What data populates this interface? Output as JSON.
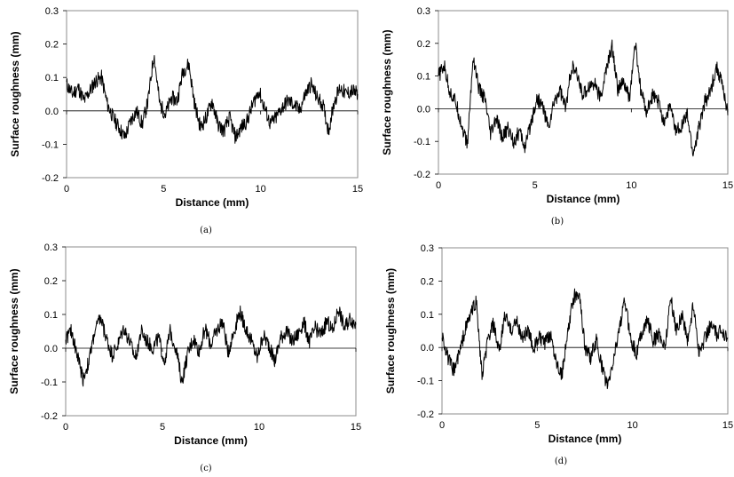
{
  "chart_data": [
    {
      "type": "line",
      "caption": "(a)",
      "xlabel": "Distance (mm)",
      "ylabel": "Surface roughness (mm)",
      "xlim": [
        0,
        15
      ],
      "ylim": [
        -0.2,
        0.3
      ],
      "xticks": [
        "0",
        "5",
        "10",
        "15"
      ],
      "yticks": [
        "0.3",
        "0.2",
        "0.1",
        "0.0",
        "-0.1",
        "-0.2"
      ],
      "series": [
        {
          "x": [
            0.0,
            0.3,
            0.6,
            0.9,
            1.2,
            1.5,
            1.8,
            2.1,
            2.4,
            2.7,
            3.0,
            3.3,
            3.6,
            3.9,
            4.2,
            4.5,
            4.8,
            5.1,
            5.4,
            5.7,
            6.0,
            6.3,
            6.6,
            6.9,
            7.2,
            7.5,
            7.8,
            8.1,
            8.4,
            8.7,
            9.0,
            9.3,
            9.6,
            9.9,
            10.2,
            10.5,
            10.8,
            11.1,
            11.4,
            11.7,
            12.0,
            12.3,
            12.6,
            12.9,
            13.2,
            13.5,
            13.8,
            14.1,
            14.4,
            14.7,
            15.0
          ],
          "y": [
            0.08,
            0.05,
            0.07,
            0.03,
            0.06,
            0.09,
            0.1,
            0.02,
            -0.02,
            -0.05,
            -0.08,
            -0.03,
            0.0,
            -0.04,
            0.03,
            0.17,
            0.02,
            -0.01,
            0.04,
            0.03,
            0.12,
            0.14,
            0.02,
            -0.05,
            -0.02,
            0.03,
            -0.04,
            -0.06,
            -0.02,
            -0.08,
            -0.05,
            -0.03,
            0.02,
            0.06,
            0.01,
            -0.04,
            -0.02,
            0.01,
            0.03,
            0.02,
            0.0,
            0.05,
            0.08,
            0.04,
            0.02,
            -0.06,
            0.03,
            0.07,
            0.05,
            0.06,
            0.05
          ]
        }
      ]
    },
    {
      "type": "line",
      "caption": "(b)",
      "xlabel": "Distance (mm)",
      "ylabel": "Surface roughness (mm)",
      "xlim": [
        0,
        15
      ],
      "ylim": [
        -0.2,
        0.3
      ],
      "xticks": [
        "0",
        "5",
        "10",
        "15"
      ],
      "yticks": [
        "0.3",
        "0.2",
        "0.1",
        "0.0",
        "-0.1",
        "-0.2"
      ],
      "series": [
        {
          "x": [
            0.0,
            0.3,
            0.6,
            0.9,
            1.2,
            1.5,
            1.8,
            2.1,
            2.4,
            2.7,
            3.0,
            3.3,
            3.6,
            3.9,
            4.2,
            4.5,
            4.8,
            5.1,
            5.4,
            5.7,
            6.0,
            6.3,
            6.6,
            6.9,
            7.2,
            7.5,
            7.8,
            8.1,
            8.4,
            8.7,
            9.0,
            9.3,
            9.6,
            9.9,
            10.2,
            10.5,
            10.8,
            11.1,
            11.4,
            11.7,
            12.0,
            12.3,
            12.6,
            12.9,
            13.2,
            13.5,
            13.8,
            14.1,
            14.4,
            14.7,
            15.0
          ],
          "y": [
            0.1,
            0.13,
            0.05,
            0.02,
            -0.05,
            -0.11,
            0.16,
            0.06,
            0.03,
            -0.08,
            -0.03,
            -0.09,
            -0.06,
            -0.1,
            -0.07,
            -0.12,
            -0.04,
            0.03,
            0.01,
            -0.06,
            0.02,
            0.06,
            0.0,
            0.13,
            0.1,
            0.04,
            0.07,
            0.08,
            0.03,
            0.12,
            0.19,
            0.06,
            0.08,
            0.03,
            0.2,
            0.05,
            -0.01,
            0.04,
            0.02,
            -0.04,
            0.01,
            -0.07,
            -0.05,
            -0.02,
            -0.14,
            -0.06,
            0.02,
            0.05,
            0.13,
            0.08,
            -0.02
          ]
        }
      ]
    },
    {
      "type": "line",
      "caption": "(c)",
      "xlabel": "Distance (mm)",
      "ylabel": "Surface roughness (mm)",
      "xlim": [
        0,
        15
      ],
      "ylim": [
        -0.2,
        0.3
      ],
      "xticks": [
        "0",
        "5",
        "10",
        "15"
      ],
      "yticks": [
        "0.3",
        "0.2",
        "0.1",
        "0.0",
        "-0.1",
        "-0.2"
      ],
      "series": [
        {
          "x": [
            0.0,
            0.3,
            0.6,
            0.9,
            1.2,
            1.5,
            1.8,
            2.1,
            2.4,
            2.7,
            3.0,
            3.3,
            3.6,
            3.9,
            4.2,
            4.5,
            4.8,
            5.1,
            5.4,
            5.7,
            6.0,
            6.3,
            6.6,
            6.9,
            7.2,
            7.5,
            7.8,
            8.1,
            8.4,
            8.7,
            9.0,
            9.3,
            9.6,
            9.9,
            10.2,
            10.5,
            10.8,
            11.1,
            11.4,
            11.7,
            12.0,
            12.3,
            12.6,
            12.9,
            13.2,
            13.5,
            13.8,
            14.1,
            14.4,
            14.7,
            15.0
          ],
          "y": [
            0.03,
            0.05,
            -0.02,
            -0.09,
            -0.04,
            0.05,
            0.09,
            0.03,
            -0.02,
            0.01,
            0.06,
            0.02,
            -0.03,
            0.05,
            0.02,
            0.0,
            0.03,
            -0.04,
            0.05,
            0.0,
            -0.1,
            -0.02,
            0.03,
            -0.01,
            0.06,
            0.01,
            0.05,
            0.08,
            -0.01,
            0.05,
            0.11,
            0.06,
            0.02,
            -0.03,
            0.04,
            0.01,
            -0.04,
            0.03,
            0.05,
            0.02,
            0.04,
            0.08,
            0.02,
            0.06,
            0.04,
            0.08,
            0.05,
            0.12,
            0.06,
            0.09,
            0.07
          ]
        }
      ]
    },
    {
      "type": "line",
      "caption": "(d)",
      "xlabel": "Distance (mm)",
      "ylabel": "Surface roughness (mm)",
      "xlim": [
        0,
        15
      ],
      "ylim": [
        -0.2,
        0.3
      ],
      "xticks": [
        "0",
        "5",
        "10",
        "15"
      ],
      "yticks": [
        "0.3",
        "0.2",
        "0.1",
        "0.0",
        "-0.1",
        "-0.2"
      ],
      "series": [
        {
          "x": [
            0.0,
            0.3,
            0.6,
            0.9,
            1.2,
            1.5,
            1.8,
            2.1,
            2.4,
            2.7,
            3.0,
            3.3,
            3.6,
            3.9,
            4.2,
            4.5,
            4.8,
            5.1,
            5.4,
            5.7,
            6.0,
            6.3,
            6.6,
            6.9,
            7.2,
            7.5,
            7.8,
            8.1,
            8.4,
            8.7,
            9.0,
            9.3,
            9.6,
            9.9,
            10.2,
            10.5,
            10.8,
            11.1,
            11.4,
            11.7,
            12.0,
            12.3,
            12.6,
            12.9,
            13.2,
            13.5,
            13.8,
            14.1,
            14.4,
            14.7,
            15.0
          ],
          "y": [
            0.04,
            -0.03,
            -0.07,
            -0.02,
            0.05,
            0.1,
            0.14,
            -0.09,
            0.02,
            0.07,
            -0.02,
            0.1,
            0.05,
            0.08,
            0.03,
            0.05,
            0.0,
            0.03,
            0.01,
            0.04,
            -0.04,
            -0.08,
            0.04,
            0.15,
            0.17,
            0.0,
            -0.03,
            0.02,
            -0.06,
            -0.12,
            -0.04,
            0.06,
            0.14,
            0.03,
            -0.02,
            0.05,
            0.08,
            0.02,
            0.04,
            0.0,
            0.15,
            0.05,
            0.1,
            0.02,
            0.13,
            -0.02,
            0.03,
            0.07,
            0.04,
            0.05,
            0.03
          ]
        }
      ]
    }
  ]
}
